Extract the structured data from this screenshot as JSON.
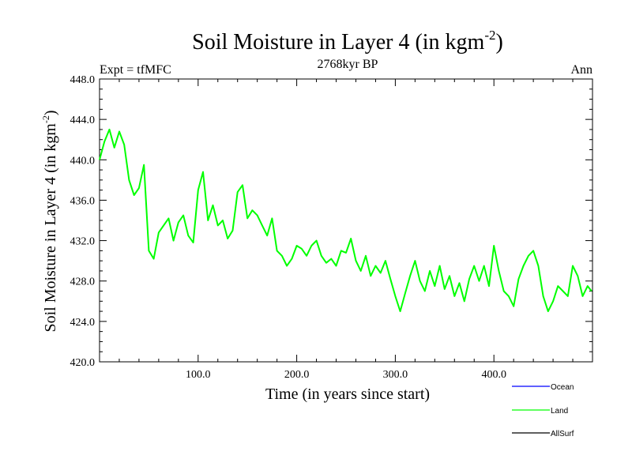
{
  "chart_data": {
    "type": "line",
    "title": "Soil Moisture in Layer 4 (in kgm",
    "title_superscript": "-2",
    "title_close": ")",
    "subtitle_left": "Expt = tfMFC",
    "subtitle_center": "2768kyr BP",
    "subtitle_right": "Ann",
    "xlabel": "Time (in years since start)",
    "ylabel": "Soil Moisture in Layer 4 (in kgm",
    "ylabel_superscript": "-2",
    "ylabel_close": ")",
    "xlim": [
      0,
      500
    ],
    "ylim": [
      420,
      448
    ],
    "x_ticks": [
      100,
      200,
      300,
      400
    ],
    "x_tick_labels": [
      "100.0",
      "200.0",
      "300.0",
      "400.0"
    ],
    "y_ticks": [
      420,
      424,
      428,
      432,
      436,
      440,
      444,
      448
    ],
    "y_tick_labels": [
      "420.0",
      "424.0",
      "428.0",
      "432.0",
      "436.0",
      "440.0",
      "444.0",
      "448.0"
    ],
    "legend": [
      {
        "name": "Ocean",
        "color": "#0000ff"
      },
      {
        "name": "Land",
        "color": "#00ff00"
      },
      {
        "name": "AllSurf",
        "color": "#000000"
      }
    ],
    "series": [
      {
        "name": "Land",
        "color": "#00ff00",
        "x": [
          0,
          5,
          10,
          15,
          20,
          25,
          30,
          35,
          40,
          45,
          50,
          55,
          60,
          65,
          70,
          75,
          80,
          85,
          90,
          95,
          100,
          105,
          110,
          115,
          120,
          125,
          130,
          135,
          140,
          145,
          150,
          155,
          160,
          165,
          170,
          175,
          180,
          185,
          190,
          195,
          200,
          205,
          210,
          215,
          220,
          225,
          230,
          235,
          240,
          245,
          250,
          255,
          260,
          265,
          270,
          275,
          280,
          285,
          290,
          295,
          300,
          305,
          310,
          315,
          320,
          325,
          330,
          335,
          340,
          345,
          350,
          355,
          360,
          365,
          370,
          375,
          380,
          385,
          390,
          395,
          400,
          405,
          410,
          415,
          420,
          425,
          430,
          435,
          440,
          445,
          450,
          455,
          460,
          465,
          470,
          475,
          480,
          485,
          490,
          495,
          499
        ],
        "values": [
          440.0,
          441.8,
          443.0,
          441.2,
          442.8,
          441.5,
          438.0,
          436.5,
          437.2,
          439.5,
          431.0,
          430.2,
          432.8,
          433.5,
          434.2,
          432.0,
          433.8,
          434.5,
          432.5,
          431.8,
          437.0,
          438.8,
          434.0,
          435.5,
          433.5,
          434.0,
          432.2,
          433.0,
          436.8,
          437.5,
          434.2,
          435.0,
          434.5,
          433.5,
          432.5,
          434.2,
          431.0,
          430.5,
          429.5,
          430.2,
          431.5,
          431.2,
          430.5,
          431.5,
          432.0,
          430.5,
          429.8,
          430.2,
          429.5,
          431.0,
          430.8,
          432.2,
          430.0,
          429.0,
          430.5,
          428.5,
          429.5,
          428.8,
          430.0,
          428.2,
          426.5,
          425.0,
          426.8,
          428.5,
          430.0,
          428.0,
          427.0,
          429.0,
          427.5,
          429.5,
          427.2,
          428.5,
          426.5,
          427.8,
          426.0,
          428.2,
          429.5,
          428.0,
          429.5,
          427.5,
          431.5,
          429.0,
          427.0,
          426.5,
          425.5,
          428.2,
          429.5,
          430.5,
          431.0,
          429.5,
          426.5,
          425.0,
          426.0,
          427.5,
          427.0,
          426.5,
          429.5,
          428.5,
          426.5,
          427.5,
          427.0
        ]
      }
    ]
  }
}
